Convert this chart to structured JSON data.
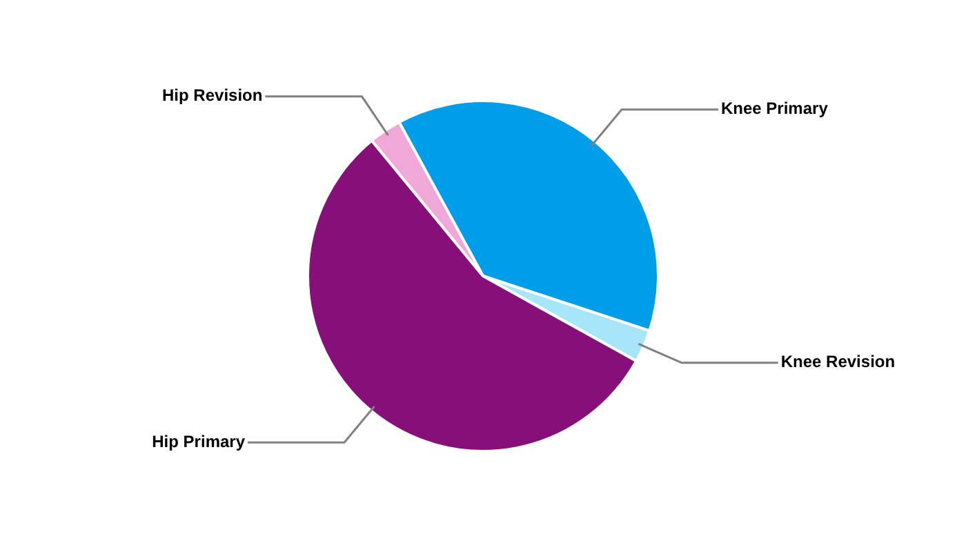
{
  "chart_data": {
    "type": "pie",
    "categories": [
      "Knee Primary",
      "Knee Revision",
      "Hip Primary",
      "Hip Revision"
    ],
    "values": [
      38,
      3,
      56,
      3
    ],
    "colors": [
      "#009de8",
      "#a6e6f8",
      "#870f7a",
      "#f0a8d8"
    ]
  }
}
